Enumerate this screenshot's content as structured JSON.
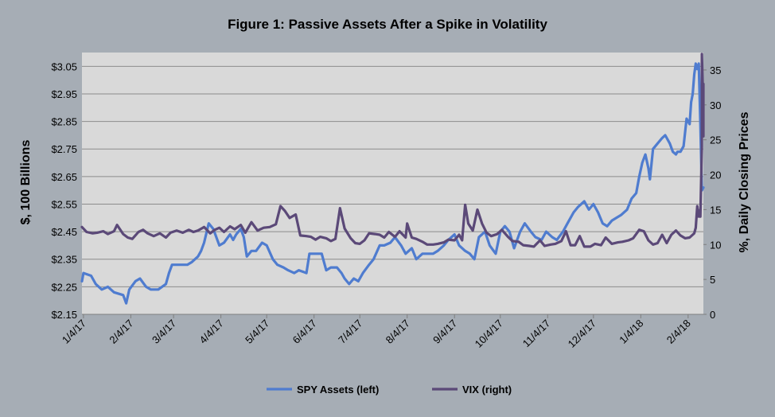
{
  "chart_data": {
    "type": "line",
    "title": "Figure 1: Passive Assets After a Spike in Volatility",
    "ylabel_left": "$, 100 Billions",
    "ylabel_right": "%, Daily Closing Prices",
    "ylim_left": [
      2.15,
      3.1
    ],
    "ylim_right": [
      0,
      37.5
    ],
    "yticks_left": [
      "$2.15",
      "$2.25",
      "$2.35",
      "$2.45",
      "$2.55",
      "$2.65",
      "$2.75",
      "$2.85",
      "$2.95",
      "$3.05"
    ],
    "yticks_left_values": [
      2.15,
      2.25,
      2.35,
      2.45,
      2.55,
      2.65,
      2.75,
      2.85,
      2.95,
      3.05
    ],
    "yticks_right": [
      "0",
      "5",
      "10",
      "15",
      "20",
      "25",
      "30",
      "35"
    ],
    "yticks_right_values": [
      0,
      5,
      10,
      15,
      20,
      25,
      30,
      35
    ],
    "xticks": [
      "1/4/17",
      "2/4/17",
      "3/4/17",
      "4/4/17",
      "5/4/17",
      "6/4/17",
      "7/4/17",
      "8/4/17",
      "9/4/17",
      "10/4/17",
      "11/4/17",
      "12/4/17",
      "1/4/18",
      "2/4/18"
    ],
    "x_start": "2017-01-03",
    "x_end": "2018-02-14",
    "grid": true,
    "legend_position": "bottom",
    "series": [
      {
        "name": "SPY Assets (left)",
        "axis": "left",
        "color": "#4f7ccf",
        "points": [
          [
            "2017-01-03",
            2.27
          ],
          [
            "2017-01-04",
            2.3
          ],
          [
            "2017-01-09",
            2.29
          ],
          [
            "2017-01-12",
            2.26
          ],
          [
            "2017-01-16",
            2.24
          ],
          [
            "2017-01-20",
            2.25
          ],
          [
            "2017-01-24",
            2.23
          ],
          [
            "2017-01-30",
            2.22
          ],
          [
            "2017-02-01",
            2.19
          ],
          [
            "2017-02-03",
            2.24
          ],
          [
            "2017-02-07",
            2.27
          ],
          [
            "2017-02-10",
            2.28
          ],
          [
            "2017-02-14",
            2.25
          ],
          [
            "2017-02-17",
            2.24
          ],
          [
            "2017-02-22",
            2.24
          ],
          [
            "2017-02-27",
            2.26
          ],
          [
            "2017-03-01",
            2.3
          ],
          [
            "2017-03-03",
            2.33
          ],
          [
            "2017-03-08",
            2.33
          ],
          [
            "2017-03-13",
            2.33
          ],
          [
            "2017-03-16",
            2.34
          ],
          [
            "2017-03-20",
            2.36
          ],
          [
            "2017-03-22",
            2.38
          ],
          [
            "2017-03-24",
            2.41
          ],
          [
            "2017-03-27",
            2.48
          ],
          [
            "2017-03-30",
            2.46
          ],
          [
            "2017-04-03",
            2.4
          ],
          [
            "2017-04-06",
            2.41
          ],
          [
            "2017-04-10",
            2.44
          ],
          [
            "2017-04-12",
            2.42
          ],
          [
            "2017-04-14",
            2.44
          ],
          [
            "2017-04-17",
            2.46
          ],
          [
            "2017-04-19",
            2.43
          ],
          [
            "2017-04-21",
            2.36
          ],
          [
            "2017-04-24",
            2.38
          ],
          [
            "2017-04-27",
            2.38
          ],
          [
            "2017-05-01",
            2.41
          ],
          [
            "2017-05-04",
            2.4
          ],
          [
            "2017-05-08",
            2.35
          ],
          [
            "2017-05-11",
            2.33
          ],
          [
            "2017-05-15",
            2.32
          ],
          [
            "2017-05-18",
            2.31
          ],
          [
            "2017-05-22",
            2.3
          ],
          [
            "2017-05-25",
            2.31
          ],
          [
            "2017-05-30",
            2.3
          ],
          [
            "2017-06-01",
            2.37
          ],
          [
            "2017-06-06",
            2.37
          ],
          [
            "2017-06-09",
            2.37
          ],
          [
            "2017-06-12",
            2.31
          ],
          [
            "2017-06-15",
            2.32
          ],
          [
            "2017-06-19",
            2.32
          ],
          [
            "2017-06-22",
            2.3
          ],
          [
            "2017-06-24",
            2.28
          ],
          [
            "2017-06-27",
            2.26
          ],
          [
            "2017-06-30",
            2.28
          ],
          [
            "2017-07-03",
            2.27
          ],
          [
            "2017-07-06",
            2.3
          ],
          [
            "2017-07-10",
            2.33
          ],
          [
            "2017-07-13",
            2.35
          ],
          [
            "2017-07-17",
            2.4
          ],
          [
            "2017-07-20",
            2.4
          ],
          [
            "2017-07-24",
            2.41
          ],
          [
            "2017-07-27",
            2.43
          ],
          [
            "2017-07-31",
            2.4
          ],
          [
            "2017-08-03",
            2.37
          ],
          [
            "2017-08-07",
            2.39
          ],
          [
            "2017-08-10",
            2.35
          ],
          [
            "2017-08-14",
            2.37
          ],
          [
            "2017-08-17",
            2.37
          ],
          [
            "2017-08-21",
            2.37
          ],
          [
            "2017-08-24",
            2.38
          ],
          [
            "2017-08-28",
            2.4
          ],
          [
            "2017-08-31",
            2.42
          ],
          [
            "2017-09-04",
            2.44
          ],
          [
            "2017-09-07",
            2.4
          ],
          [
            "2017-09-11",
            2.38
          ],
          [
            "2017-09-14",
            2.37
          ],
          [
            "2017-09-17",
            2.35
          ],
          [
            "2017-09-20",
            2.43
          ],
          [
            "2017-09-24",
            2.45
          ],
          [
            "2017-09-27",
            2.4
          ],
          [
            "2017-10-01",
            2.37
          ],
          [
            "2017-10-04",
            2.45
          ],
          [
            "2017-10-07",
            2.47
          ],
          [
            "2017-10-10",
            2.45
          ],
          [
            "2017-10-13",
            2.39
          ],
          [
            "2017-10-17",
            2.45
          ],
          [
            "2017-10-20",
            2.48
          ],
          [
            "2017-10-24",
            2.45
          ],
          [
            "2017-10-27",
            2.43
          ],
          [
            "2017-10-31",
            2.42
          ],
          [
            "2017-11-03",
            2.45
          ],
          [
            "2017-11-07",
            2.43
          ],
          [
            "2017-11-10",
            2.42
          ],
          [
            "2017-11-14",
            2.45
          ],
          [
            "2017-11-17",
            2.48
          ],
          [
            "2017-11-21",
            2.52
          ],
          [
            "2017-11-24",
            2.54
          ],
          [
            "2017-11-28",
            2.56
          ],
          [
            "2017-12-01",
            2.53
          ],
          [
            "2017-12-04",
            2.55
          ],
          [
            "2017-12-07",
            2.52
          ],
          [
            "2017-12-10",
            2.48
          ],
          [
            "2017-12-13",
            2.47
          ],
          [
            "2017-12-16",
            2.49
          ],
          [
            "2017-12-19",
            2.5
          ],
          [
            "2017-12-22",
            2.51
          ],
          [
            "2017-12-26",
            2.53
          ],
          [
            "2017-12-29",
            2.57
          ],
          [
            "2018-01-01",
            2.59
          ],
          [
            "2018-01-03",
            2.65
          ],
          [
            "2018-01-05",
            2.7
          ],
          [
            "2018-01-07",
            2.73
          ],
          [
            "2018-01-09",
            2.68
          ],
          [
            "2018-01-10",
            2.64
          ],
          [
            "2018-01-12",
            2.75
          ],
          [
            "2018-01-15",
            2.77
          ],
          [
            "2018-01-18",
            2.79
          ],
          [
            "2018-01-20",
            2.8
          ],
          [
            "2018-01-23",
            2.77
          ],
          [
            "2018-01-25",
            2.74
          ],
          [
            "2018-01-27",
            2.73
          ],
          [
            "2018-01-28",
            2.74
          ],
          [
            "2018-01-30",
            2.74
          ],
          [
            "2018-02-01",
            2.76
          ],
          [
            "2018-02-03",
            2.86
          ],
          [
            "2018-02-05",
            2.84
          ],
          [
            "2018-02-06",
            2.92
          ],
          [
            "2018-02-07",
            2.95
          ],
          [
            "2018-02-08",
            3.02
          ],
          [
            "2018-02-09",
            3.06
          ],
          [
            "2018-02-10",
            3.04
          ],
          [
            "2018-02-11",
            3.06
          ],
          [
            "2018-02-12",
            2.84
          ],
          [
            "2018-02-13",
            2.6
          ],
          [
            "2018-02-14",
            2.61
          ]
        ]
      },
      {
        "name": "VIX (right)",
        "axis": "right",
        "color": "#5b4978",
        "points": [
          [
            "2017-01-03",
            12.5
          ],
          [
            "2017-01-06",
            11.8
          ],
          [
            "2017-01-10",
            11.6
          ],
          [
            "2017-01-13",
            11.7
          ],
          [
            "2017-01-17",
            11.9
          ],
          [
            "2017-01-20",
            11.5
          ],
          [
            "2017-01-24",
            11.9
          ],
          [
            "2017-01-26",
            12.8
          ],
          [
            "2017-01-30",
            11.5
          ],
          [
            "2017-02-02",
            11.0
          ],
          [
            "2017-02-05",
            10.8
          ],
          [
            "2017-02-09",
            11.8
          ],
          [
            "2017-02-12",
            12.1
          ],
          [
            "2017-02-15",
            11.6
          ],
          [
            "2017-02-19",
            11.2
          ],
          [
            "2017-02-23",
            11.6
          ],
          [
            "2017-02-27",
            11.0
          ],
          [
            "2017-03-02",
            11.7
          ],
          [
            "2017-03-06",
            12.0
          ],
          [
            "2017-03-10",
            11.7
          ],
          [
            "2017-03-14",
            12.1
          ],
          [
            "2017-03-17",
            11.8
          ],
          [
            "2017-03-20",
            12.0
          ],
          [
            "2017-03-24",
            12.5
          ],
          [
            "2017-03-28",
            11.6
          ],
          [
            "2017-03-31",
            12.1
          ],
          [
            "2017-04-03",
            12.4
          ],
          [
            "2017-04-06",
            11.8
          ],
          [
            "2017-04-10",
            12.6
          ],
          [
            "2017-04-13",
            12.2
          ],
          [
            "2017-04-17",
            12.8
          ],
          [
            "2017-04-20",
            11.7
          ],
          [
            "2017-04-24",
            13.2
          ],
          [
            "2017-04-28",
            12.0
          ],
          [
            "2017-05-02",
            12.4
          ],
          [
            "2017-05-06",
            12.5
          ],
          [
            "2017-05-10",
            12.9
          ],
          [
            "2017-05-13",
            15.5
          ],
          [
            "2017-05-16",
            14.8
          ],
          [
            "2017-05-19",
            13.8
          ],
          [
            "2017-05-23",
            14.3
          ],
          [
            "2017-05-26",
            11.3
          ],
          [
            "2017-05-30",
            11.2
          ],
          [
            "2017-06-02",
            11.1
          ],
          [
            "2017-06-05",
            10.7
          ],
          [
            "2017-06-08",
            11.1
          ],
          [
            "2017-06-12",
            10.9
          ],
          [
            "2017-06-15",
            10.5
          ],
          [
            "2017-06-18",
            10.8
          ],
          [
            "2017-06-21",
            15.2
          ],
          [
            "2017-06-24",
            12.3
          ],
          [
            "2017-06-28",
            10.9
          ],
          [
            "2017-07-01",
            10.2
          ],
          [
            "2017-07-04",
            10.1
          ],
          [
            "2017-07-07",
            10.6
          ],
          [
            "2017-07-10",
            11.6
          ],
          [
            "2017-07-14",
            11.5
          ],
          [
            "2017-07-17",
            11.4
          ],
          [
            "2017-07-20",
            11.0
          ],
          [
            "2017-07-23",
            11.8
          ],
          [
            "2017-07-27",
            11.1
          ],
          [
            "2017-07-30",
            11.9
          ],
          [
            "2017-08-03",
            11.0
          ],
          [
            "2017-08-04",
            13.0
          ],
          [
            "2017-08-07",
            11.0
          ],
          [
            "2017-08-10",
            10.8
          ],
          [
            "2017-08-14",
            10.4
          ],
          [
            "2017-08-17",
            10.0
          ],
          [
            "2017-08-21",
            10.0
          ],
          [
            "2017-08-24",
            10.1
          ],
          [
            "2017-08-28",
            10.3
          ],
          [
            "2017-08-31",
            10.7
          ],
          [
            "2017-09-04",
            10.6
          ],
          [
            "2017-09-07",
            11.4
          ],
          [
            "2017-09-09",
            10.6
          ],
          [
            "2017-09-11",
            15.7
          ],
          [
            "2017-09-13",
            13.0
          ],
          [
            "2017-09-16",
            12.0
          ],
          [
            "2017-09-19",
            15.0
          ],
          [
            "2017-09-22",
            13.0
          ],
          [
            "2017-09-25",
            11.7
          ],
          [
            "2017-09-28",
            11.2
          ],
          [
            "2017-10-02",
            11.5
          ],
          [
            "2017-10-05",
            12.1
          ],
          [
            "2017-10-09",
            11.1
          ],
          [
            "2017-10-12",
            10.5
          ],
          [
            "2017-10-16",
            10.4
          ],
          [
            "2017-10-19",
            9.9
          ],
          [
            "2017-10-23",
            9.8
          ],
          [
            "2017-10-26",
            9.7
          ],
          [
            "2017-10-30",
            10.6
          ],
          [
            "2017-11-02",
            9.8
          ],
          [
            "2017-11-06",
            10.0
          ],
          [
            "2017-11-09",
            10.1
          ],
          [
            "2017-11-13",
            10.5
          ],
          [
            "2017-11-16",
            11.9
          ],
          [
            "2017-11-19",
            9.9
          ],
          [
            "2017-11-22",
            9.9
          ],
          [
            "2017-11-25",
            11.2
          ],
          [
            "2017-11-28",
            9.7
          ],
          [
            "2017-12-02",
            9.7
          ],
          [
            "2017-12-05",
            10.1
          ],
          [
            "2017-12-09",
            9.9
          ],
          [
            "2017-12-12",
            11.0
          ],
          [
            "2017-12-16",
            10.1
          ],
          [
            "2017-12-20",
            10.3
          ],
          [
            "2017-12-23",
            10.4
          ],
          [
            "2017-12-27",
            10.6
          ],
          [
            "2017-12-30",
            10.9
          ],
          [
            "2018-01-03",
            12.1
          ],
          [
            "2018-01-06",
            11.9
          ],
          [
            "2018-01-09",
            10.6
          ],
          [
            "2018-01-12",
            10.0
          ],
          [
            "2018-01-15",
            10.2
          ],
          [
            "2018-01-18",
            11.4
          ],
          [
            "2018-01-21",
            10.2
          ],
          [
            "2018-01-24",
            11.4
          ],
          [
            "2018-01-27",
            12.0
          ],
          [
            "2018-01-30",
            11.3
          ],
          [
            "2018-02-02",
            10.9
          ],
          [
            "2018-02-05",
            11.0
          ],
          [
            "2018-02-08",
            11.6
          ],
          [
            "2018-02-09",
            12.4
          ],
          [
            "2018-02-10",
            15.5
          ],
          [
            "2018-02-11",
            14.0
          ],
          [
            "2018-02-12",
            15.0
          ],
          [
            "2018-02-12",
            14.0
          ],
          [
            "2018-02-13",
            24.0
          ],
          [
            "2018-02-13",
            30.0
          ],
          [
            "2018-02-13",
            37.3
          ],
          [
            "2018-02-14",
            29.0
          ],
          [
            "2018-02-14",
            33.0
          ],
          [
            "2018-02-14",
            25.5
          ]
        ]
      }
    ]
  }
}
